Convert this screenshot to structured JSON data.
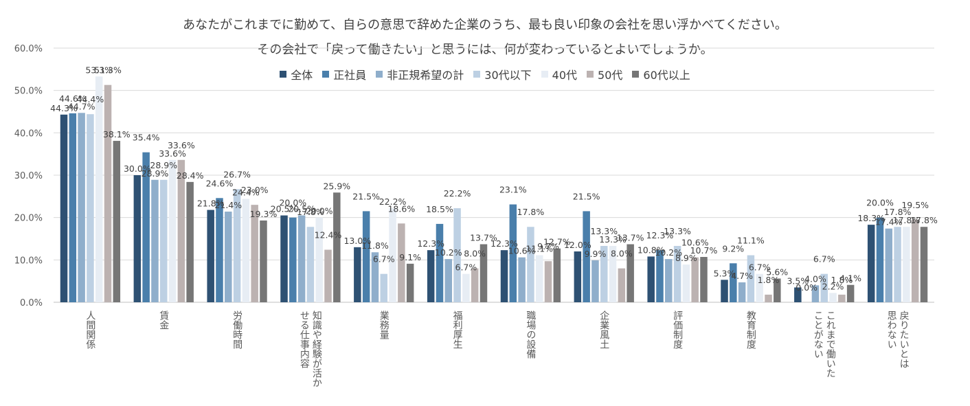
{
  "chart_data": {
    "type": "bar",
    "title_lines": [
      "あなたがこれまでに勤めて、自らの意思で辞めた企業のうち、最も良い印象の会社を思い浮かべてください。",
      "その会社で「戻って働きたい」と思うには、何が変わっているとよいでしょうか。"
    ],
    "categories": [
      [
        "人間関係"
      ],
      [
        "賃金"
      ],
      [
        "労働時間"
      ],
      [
        "知識や経験が活か",
        "せる仕事内容"
      ],
      [
        "業務量"
      ],
      [
        "福利厚生"
      ],
      [
        "職場の設備"
      ],
      [
        "企業風土"
      ],
      [
        "評価制度"
      ],
      [
        "教育制度"
      ],
      [
        "これまで働いた",
        "ことがない"
      ],
      [
        "戻りたいとは",
        "思わない"
      ]
    ],
    "series": [
      {
        "name": "全体",
        "color": "#2e5173",
        "values": [
          44.3,
          30.0,
          21.8,
          20.5,
          13.0,
          12.3,
          12.3,
          12.0,
          10.8,
          5.3,
          3.5,
          18.3
        ]
      },
      {
        "name": "正社員",
        "color": "#4a7fab",
        "values": [
          44.6,
          35.4,
          24.6,
          20.0,
          21.5,
          18.5,
          23.1,
          21.5,
          12.3,
          9.2,
          0.0,
          20.0
        ]
      },
      {
        "name": "非正規希望の計",
        "color": "#8faecb",
        "values": [
          44.7,
          28.9,
          21.4,
          20.5,
          11.8,
          10.2,
          10.6,
          9.9,
          10.2,
          4.7,
          4.0,
          17.4
        ]
      },
      {
        "name": "30代以下",
        "color": "#bdd0e3",
        "values": [
          44.4,
          28.9,
          26.7,
          17.8,
          6.7,
          22.2,
          17.8,
          13.3,
          13.3,
          11.1,
          6.7,
          17.8
        ]
      },
      {
        "name": "40代",
        "color": "#e7edf4",
        "values": [
          53.3,
          33.6,
          24.4,
          20.0,
          22.2,
          6.7,
          11.1,
          13.3,
          8.9,
          6.7,
          2.2,
          17.8
        ]
      },
      {
        "name": "50代",
        "color": "#bcb2b1",
        "values": [
          51.3,
          33.6,
          23.0,
          12.4,
          18.6,
          8.0,
          9.7,
          8.0,
          10.6,
          1.8,
          1.8,
          19.5
        ]
      },
      {
        "name": "60代以上",
        "color": "#767676",
        "values": [
          38.1,
          28.4,
          19.3,
          25.9,
          9.1,
          13.7,
          12.7,
          13.7,
          10.7,
          5.6,
          4.1,
          17.8
        ]
      }
    ],
    "y_tick_labels": [
      "0.0%",
      "10.0%",
      "20.0%",
      "30.0%",
      "40.0%",
      "50.0%",
      "60.0%"
    ],
    "ylim": [
      0,
      60
    ],
    "grid": true,
    "legend_position": "top-center",
    "xlabel": "",
    "ylabel": ""
  }
}
